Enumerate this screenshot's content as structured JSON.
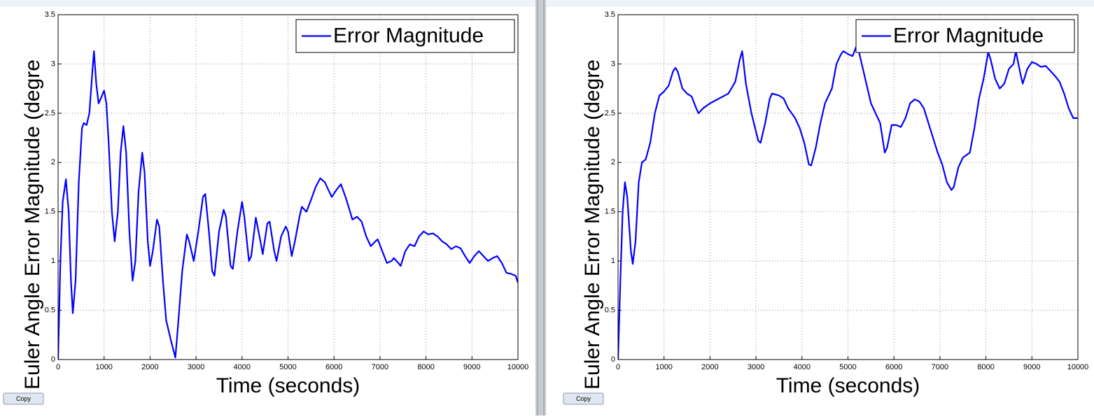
{
  "chart_data": [
    {
      "type": "line",
      "xlabel": "Time (seconds)",
      "ylabel": "Euler Angle Error Magnitude (degre",
      "x": [
        0,
        50,
        100,
        170,
        230,
        280,
        320,
        380,
        450,
        520,
        560,
        620,
        680,
        750,
        780,
        830,
        880,
        930,
        1000,
        1050,
        1100,
        1170,
        1230,
        1300,
        1360,
        1420,
        1480,
        1550,
        1620,
        1680,
        1750,
        1830,
        1880,
        1950,
        2000,
        2060,
        2150,
        2200,
        2280,
        2350,
        2450,
        2550,
        2600,
        2700,
        2800,
        2850,
        2950,
        3050,
        3150,
        3200,
        3280,
        3350,
        3400,
        3500,
        3600,
        3650,
        3750,
        3800,
        3900,
        4000,
        4050,
        4150,
        4200,
        4300,
        4400,
        4450,
        4550,
        4600,
        4700,
        4750,
        4850,
        4950,
        5000,
        5080,
        5150,
        5250,
        5300,
        5400,
        5500,
        5600,
        5700,
        5800,
        5900,
        5950,
        6050,
        6150,
        6250,
        6350,
        6400,
        6500,
        6600,
        6700,
        6800,
        6900,
        6950,
        7050,
        7150,
        7250,
        7300,
        7400,
        7450,
        7550,
        7650,
        7750,
        7850,
        7950,
        8050,
        8150,
        8250,
        8350,
        8450,
        8550,
        8650,
        8750,
        8850,
        8950,
        9050,
        9150,
        9250,
        9350,
        9450,
        9550,
        9650,
        9750,
        9850,
        9950,
        10000
      ],
      "series": [
        {
          "name": "Error Magnitude",
          "color": "#0000ff",
          "values": [
            0,
            1.0,
            1.6,
            1.83,
            1.5,
            0.8,
            0.47,
            0.8,
            1.8,
            2.35,
            2.4,
            2.38,
            2.5,
            2.95,
            3.13,
            2.8,
            2.6,
            2.65,
            2.73,
            2.6,
            2.2,
            1.5,
            1.2,
            1.5,
            2.1,
            2.37,
            2.1,
            1.3,
            0.8,
            1.0,
            1.7,
            2.1,
            1.9,
            1.2,
            0.95,
            1.1,
            1.42,
            1.35,
            0.8,
            0.4,
            0.2,
            0.02,
            0.3,
            0.9,
            1.27,
            1.2,
            1.0,
            1.3,
            1.65,
            1.68,
            1.3,
            0.9,
            0.85,
            1.3,
            1.52,
            1.45,
            0.95,
            0.92,
            1.3,
            1.6,
            1.45,
            1.0,
            1.05,
            1.44,
            1.2,
            1.07,
            1.38,
            1.4,
            1.1,
            1.0,
            1.25,
            1.35,
            1.3,
            1.05,
            1.2,
            1.45,
            1.55,
            1.5,
            1.62,
            1.75,
            1.84,
            1.8,
            1.7,
            1.65,
            1.72,
            1.78,
            1.65,
            1.5,
            1.42,
            1.45,
            1.4,
            1.25,
            1.15,
            1.2,
            1.22,
            1.1,
            0.98,
            1.0,
            1.03,
            0.98,
            0.95,
            1.1,
            1.17,
            1.15,
            1.25,
            1.3,
            1.27,
            1.28,
            1.25,
            1.2,
            1.17,
            1.12,
            1.15,
            1.13,
            1.05,
            0.98,
            1.05,
            1.1,
            1.05,
            1.0,
            1.03,
            1.05,
            0.98,
            0.88,
            0.87,
            0.85,
            0.78
          ]
        }
      ],
      "xlim": [
        0,
        10000
      ],
      "ylim": [
        0,
        3.5
      ],
      "xticks": [
        0,
        1000,
        2000,
        3000,
        4000,
        5000,
        6000,
        7000,
        8000,
        9000,
        10000
      ],
      "yticks": [
        0,
        0.5,
        1,
        1.5,
        2,
        2.5,
        3,
        3.5
      ],
      "grid": true,
      "legend": "upper right"
    },
    {
      "type": "line",
      "xlabel": "Time (seconds)",
      "ylabel": "Euler Angle Error Magnitude (degre",
      "x": [
        0,
        50,
        100,
        150,
        200,
        280,
        320,
        380,
        450,
        520,
        600,
        700,
        800,
        900,
        1000,
        1100,
        1200,
        1250,
        1300,
        1400,
        1500,
        1600,
        1700,
        1750,
        1850,
        2000,
        2200,
        2400,
        2550,
        2650,
        2700,
        2780,
        2900,
        3050,
        3100,
        3200,
        3300,
        3350,
        3500,
        3600,
        3700,
        3850,
        3950,
        4050,
        4150,
        4200,
        4300,
        4400,
        4500,
        4650,
        4750,
        4850,
        4900,
        5000,
        5100,
        5200,
        5300,
        5400,
        5500,
        5600,
        5700,
        5800,
        5850,
        5950,
        6050,
        6150,
        6250,
        6350,
        6450,
        6550,
        6650,
        6750,
        6850,
        6950,
        7050,
        7150,
        7250,
        7300,
        7400,
        7500,
        7650,
        7750,
        7850,
        7950,
        8050,
        8100,
        8200,
        8300,
        8400,
        8500,
        8600,
        8650,
        8750,
        8800,
        8900,
        9000,
        9100,
        9200,
        9300,
        9400,
        9500,
        9600,
        9700,
        9800,
        9900,
        10000
      ],
      "series": [
        {
          "name": "Error Magnitude",
          "color": "#0000ff",
          "values": [
            0,
            0.8,
            1.5,
            1.8,
            1.65,
            1.1,
            0.97,
            1.2,
            1.8,
            2.0,
            2.03,
            2.2,
            2.5,
            2.68,
            2.72,
            2.78,
            2.93,
            2.96,
            2.92,
            2.75,
            2.7,
            2.67,
            2.55,
            2.5,
            2.55,
            2.6,
            2.65,
            2.7,
            2.82,
            3.05,
            3.13,
            2.8,
            2.5,
            2.22,
            2.2,
            2.4,
            2.65,
            2.7,
            2.68,
            2.65,
            2.55,
            2.45,
            2.35,
            2.2,
            1.98,
            1.97,
            2.15,
            2.4,
            2.6,
            2.75,
            3.0,
            3.1,
            3.13,
            3.1,
            3.08,
            3.2,
            3.0,
            2.8,
            2.6,
            2.5,
            2.4,
            2.1,
            2.15,
            2.38,
            2.38,
            2.36,
            2.45,
            2.6,
            2.64,
            2.62,
            2.55,
            2.4,
            2.25,
            2.1,
            1.98,
            1.8,
            1.72,
            1.75,
            1.95,
            2.05,
            2.1,
            2.35,
            2.65,
            2.85,
            3.12,
            3.05,
            2.85,
            2.75,
            2.8,
            2.95,
            3.0,
            3.13,
            2.9,
            2.8,
            2.95,
            3.02,
            3.0,
            2.97,
            2.98,
            2.93,
            2.88,
            2.82,
            2.7,
            2.55,
            2.45,
            2.45
          ]
        }
      ],
      "xlim": [
        0,
        10000
      ],
      "ylim": [
        0,
        3.5
      ],
      "xticks": [
        0,
        1000,
        2000,
        3000,
        4000,
        5000,
        6000,
        7000,
        8000,
        9000,
        10000
      ],
      "yticks": [
        0,
        0.5,
        1,
        1.5,
        2,
        2.5,
        3,
        3.5
      ],
      "grid": true,
      "legend": "upper right"
    }
  ],
  "copy_buttons": [
    "Copy",
    "Copy"
  ]
}
